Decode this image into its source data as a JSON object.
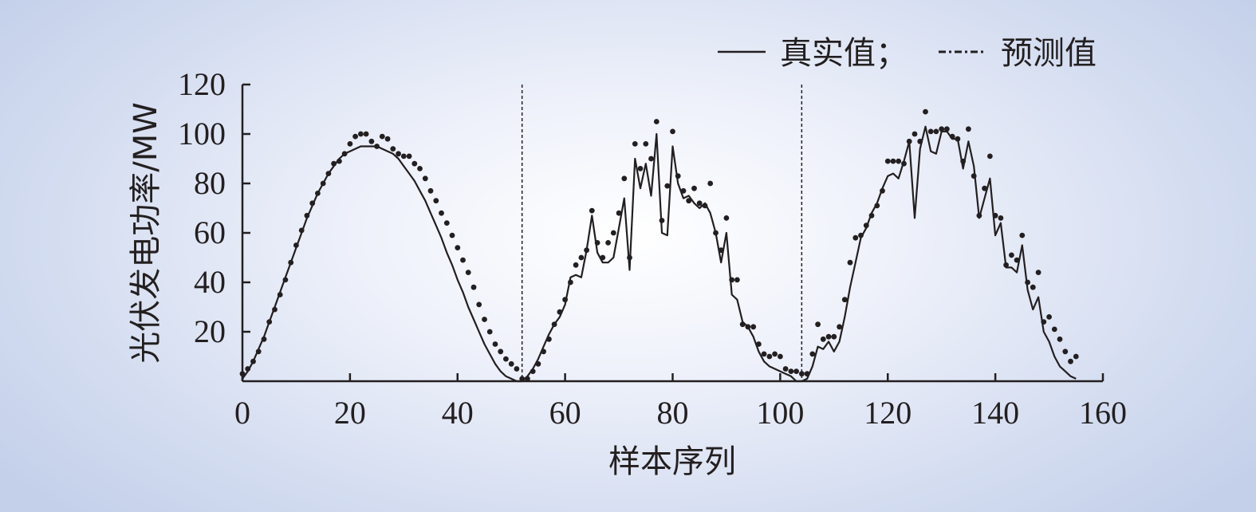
{
  "chart_data": {
    "type": "line",
    "xlabel": "样本序列",
    "ylabel": "光伏发电功率/MW",
    "xlim": [
      0,
      160
    ],
    "ylim": [
      0,
      120
    ],
    "xticks": [
      "0",
      "20",
      "40",
      "60",
      "80",
      "100",
      "120",
      "140",
      "160"
    ],
    "yticks": [
      "20",
      "40",
      "60",
      "80",
      "100",
      "120"
    ],
    "day_separators": [
      52,
      104
    ],
    "legend": {
      "position": "top-right",
      "entries": [
        "真实值；",
        "预测值"
      ]
    },
    "colors": {
      "line": "#231f20",
      "background": "#dfe6f4"
    },
    "series": [
      {
        "name": "真实值",
        "style": "solid-line",
        "x": [
          0,
          1,
          2,
          3,
          4,
          5,
          6,
          7,
          8,
          9,
          10,
          11,
          12,
          13,
          14,
          15,
          16,
          17,
          18,
          19,
          20,
          21,
          22,
          23,
          24,
          25,
          26,
          27,
          28,
          29,
          30,
          31,
          32,
          33,
          34,
          35,
          36,
          37,
          38,
          39,
          40,
          41,
          42,
          43,
          44,
          45,
          46,
          47,
          48,
          49,
          50,
          51,
          52,
          53,
          54,
          55,
          56,
          57,
          58,
          59,
          60,
          61,
          62,
          63,
          64,
          65,
          66,
          67,
          68,
          69,
          70,
          71,
          72,
          73,
          74,
          75,
          76,
          77,
          78,
          79,
          80,
          81,
          82,
          83,
          84,
          85,
          86,
          87,
          88,
          89,
          90,
          91,
          92,
          93,
          94,
          95,
          96,
          97,
          98,
          99,
          100,
          101,
          102,
          103,
          104,
          105,
          106,
          107,
          108,
          109,
          110,
          111,
          112,
          113,
          114,
          115,
          116,
          117,
          118,
          119,
          120,
          121,
          122,
          123,
          124,
          125,
          126,
          127,
          128,
          129,
          130,
          131,
          132,
          133,
          134,
          135,
          136,
          137,
          138,
          139,
          140,
          141,
          142,
          143,
          144,
          145,
          146,
          147,
          148,
          149,
          150,
          151,
          152,
          153,
          154,
          155
        ],
        "y": [
          1,
          4,
          8,
          13,
          18,
          24,
          30,
          36,
          42,
          48,
          54,
          60,
          66,
          71,
          76,
          80,
          84,
          87,
          90,
          92,
          93,
          94,
          95,
          95,
          95,
          95,
          94,
          93,
          92,
          90,
          87,
          84,
          81,
          77,
          73,
          68,
          63,
          58,
          52,
          47,
          41,
          36,
          30,
          25,
          20,
          15,
          11,
          7,
          4,
          2,
          1,
          0,
          0,
          2,
          5,
          9,
          14,
          19,
          23,
          26,
          31,
          42,
          43,
          42,
          53,
          67,
          52,
          48,
          48,
          50,
          62,
          74,
          45,
          90,
          78,
          88,
          75,
          100,
          60,
          59,
          95,
          80,
          74,
          75,
          72,
          70,
          72,
          68,
          60,
          48,
          60,
          35,
          33,
          24,
          22,
          18,
          12,
          8,
          6,
          5,
          4,
          3,
          2,
          0,
          0,
          1,
          6,
          14,
          13,
          16,
          12,
          16,
          26,
          38,
          48,
          58,
          62,
          68,
          72,
          78,
          83,
          84,
          82,
          89,
          97,
          66,
          94,
          103,
          93,
          92,
          101,
          101,
          98,
          98,
          86,
          97,
          87,
          66,
          74,
          82,
          59,
          64,
          46,
          46,
          44,
          55,
          37,
          29,
          34,
          20,
          16,
          10,
          6,
          4,
          2,
          1
        ]
      },
      {
        "name": "预测值",
        "style": "dotted-markers",
        "x": [
          0,
          1,
          2,
          3,
          4,
          5,
          6,
          7,
          8,
          9,
          10,
          11,
          12,
          13,
          14,
          15,
          16,
          17,
          18,
          19,
          20,
          21,
          22,
          23,
          24,
          25,
          26,
          27,
          28,
          29,
          30,
          31,
          32,
          33,
          34,
          35,
          36,
          37,
          38,
          39,
          40,
          41,
          42,
          43,
          44,
          45,
          46,
          47,
          48,
          49,
          50,
          51,
          52,
          53,
          54,
          55,
          56,
          57,
          58,
          59,
          60,
          61,
          62,
          63,
          64,
          65,
          66,
          67,
          68,
          69,
          70,
          71,
          72,
          73,
          74,
          75,
          76,
          77,
          78,
          79,
          80,
          81,
          82,
          83,
          84,
          85,
          86,
          87,
          88,
          89,
          90,
          91,
          92,
          93,
          94,
          95,
          96,
          97,
          98,
          99,
          100,
          101,
          102,
          103,
          104,
          105,
          106,
          107,
          108,
          109,
          110,
          111,
          112,
          113,
          114,
          115,
          116,
          117,
          118,
          119,
          120,
          121,
          122,
          123,
          124,
          125,
          126,
          127,
          128,
          129,
          130,
          131,
          132,
          133,
          134,
          135,
          136,
          137,
          138,
          139,
          140,
          141,
          142,
          143,
          144,
          145,
          146,
          147,
          148,
          149,
          150,
          151,
          152,
          153,
          154,
          155
        ],
        "y": [
          3,
          5,
          8,
          12,
          17,
          24,
          29,
          35,
          41,
          48,
          55,
          61,
          67,
          72,
          76,
          80,
          84,
          88,
          89,
          92,
          96,
          99,
          100,
          100,
          97,
          95,
          99,
          98,
          94,
          92,
          91,
          91,
          88,
          86,
          82,
          77,
          73,
          68,
          64,
          59,
          54,
          49,
          44,
          38,
          31,
          25,
          20,
          15,
          12,
          9,
          7,
          5,
          1,
          1,
          4,
          7,
          12,
          17,
          23,
          28,
          33,
          40,
          47,
          50,
          53,
          69,
          56,
          50,
          56,
          60,
          68,
          82,
          50,
          96,
          86,
          96,
          90,
          105,
          65,
          79,
          101,
          83,
          77,
          73,
          78,
          72,
          71,
          80,
          60,
          53,
          66,
          41,
          41,
          23,
          22,
          22,
          15,
          11,
          10,
          11,
          10,
          5,
          4,
          4,
          3,
          3,
          11,
          23,
          17,
          18,
          18,
          22,
          33,
          48,
          58,
          59,
          63,
          67,
          71,
          77,
          89,
          89,
          89,
          88,
          97,
          100,
          97,
          109,
          101,
          101,
          102,
          102,
          99,
          98,
          89,
          102,
          83,
          67,
          78,
          91,
          67,
          66,
          47,
          51,
          49,
          59,
          40,
          38,
          44,
          24,
          26,
          21,
          17,
          12,
          8,
          10
        ]
      }
    ]
  }
}
